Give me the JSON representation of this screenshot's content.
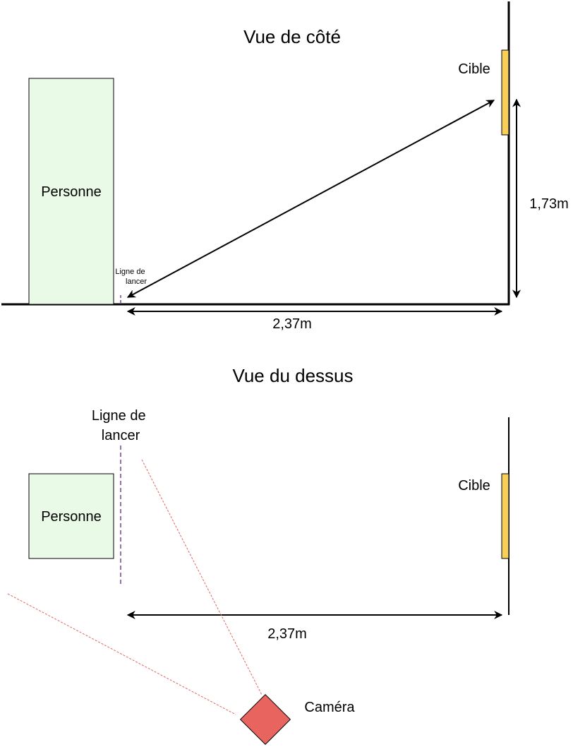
{
  "side_view": {
    "title": "Vue de côté",
    "person_label": "Personne",
    "throw_line_label": [
      "Ligne de",
      "lancer"
    ],
    "target_label": "Cible",
    "height_label": "1,73m",
    "distance_label": "2,37m"
  },
  "top_view": {
    "title": "Vue du dessus",
    "throw_line_label": [
      "Ligne de",
      "lancer"
    ],
    "person_label": "Personne",
    "target_label": "Cible",
    "distance_label": "2,37m",
    "camera_label": "Caméra"
  },
  "colors": {
    "person_fill": "#e9fbe6",
    "target_fill": "#f7cf59",
    "throw_line": "#9673a6",
    "camera_fill": "#e8645f",
    "camera_view": "#e06660",
    "line": "#000000"
  }
}
